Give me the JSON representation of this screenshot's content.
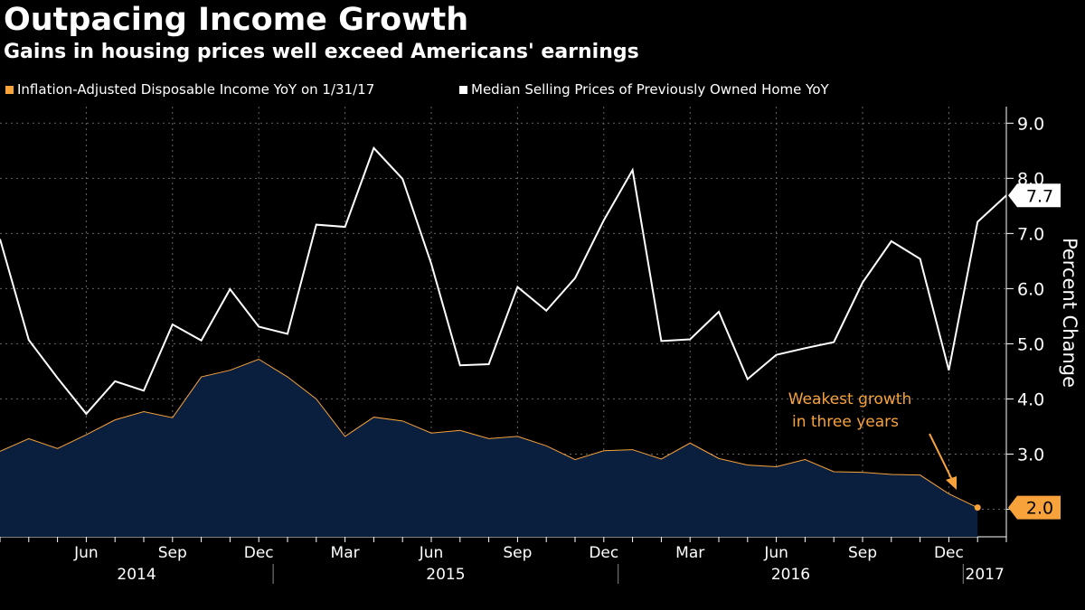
{
  "title": "Outpacing Income Growth",
  "subtitle": "Gains in housing prices well exceed Americans' earnings",
  "colors": {
    "background": "#000000",
    "income": "#f7a23b",
    "income_fill": "#0a1f3d",
    "housing": "#ffffff",
    "grid": "#666666"
  },
  "legend": [
    {
      "label": "Inflation-Adjusted Disposable Income YoY on 1/31/17",
      "color": "#f7a23b"
    },
    {
      "label": "Median Selling Prices of Previously Owned Home YoY",
      "color": "#ffffff"
    }
  ],
  "annotation": {
    "line1": "Weakest growth",
    "line2": "in three years"
  },
  "chart_data": {
    "type": "line",
    "x": [
      "2014-03",
      "2014-04",
      "2014-05",
      "2014-06",
      "2014-07",
      "2014-08",
      "2014-09",
      "2014-10",
      "2014-11",
      "2014-12",
      "2015-01",
      "2015-02",
      "2015-03",
      "2015-04",
      "2015-05",
      "2015-06",
      "2015-07",
      "2015-08",
      "2015-09",
      "2015-10",
      "2015-11",
      "2015-12",
      "2016-01",
      "2016-02",
      "2016-03",
      "2016-04",
      "2016-05",
      "2016-06",
      "2016-07",
      "2016-08",
      "2016-09",
      "2016-10",
      "2016-11",
      "2016-12",
      "2017-01",
      "2017-02"
    ],
    "series": [
      {
        "name": "Inflation-Adjusted Disposable Income YoY on 1/31/17",
        "area": true,
        "values": [
          3.05,
          3.28,
          3.1,
          3.35,
          3.62,
          3.77,
          3.66,
          4.4,
          4.52,
          4.72,
          4.4,
          4.0,
          3.32,
          3.67,
          3.6,
          3.38,
          3.43,
          3.28,
          3.32,
          3.15,
          2.9,
          3.06,
          3.08,
          2.91,
          3.2,
          2.92,
          2.8,
          2.77,
          2.9,
          2.68,
          2.67,
          2.63,
          2.62,
          2.28,
          2.03,
          null
        ],
        "last_value_label": "2.0"
      },
      {
        "name": "Median Selling Prices of Previously Owned Home YoY",
        "values": [
          6.9,
          5.07,
          4.38,
          3.73,
          4.32,
          4.15,
          5.35,
          5.06,
          5.99,
          5.31,
          5.18,
          7.16,
          7.12,
          8.55,
          7.99,
          6.45,
          4.61,
          4.63,
          6.03,
          5.6,
          6.19,
          7.24,
          8.15,
          5.05,
          5.08,
          5.58,
          4.36,
          4.8,
          4.92,
          5.03,
          6.11,
          6.86,
          6.54,
          4.52,
          7.21,
          7.69
        ],
        "last_value_label": "7.7"
      }
    ],
    "ylabel": "Percent Change",
    "ylim": [
      1.5,
      9.3
    ],
    "yticks": [
      "2.0",
      "3.0",
      "4.0",
      "5.0",
      "6.0",
      "7.0",
      "8.0",
      "9.0"
    ],
    "month_ticks": [
      {
        "label": "Jun",
        "index": 3
      },
      {
        "label": "Sep",
        "index": 6
      },
      {
        "label": "Dec",
        "index": 9
      },
      {
        "label": "Mar",
        "index": 12
      },
      {
        "label": "Jun",
        "index": 15
      },
      {
        "label": "Sep",
        "index": 18
      },
      {
        "label": "Dec",
        "index": 21
      },
      {
        "label": "Mar",
        "index": 24
      },
      {
        "label": "Jun",
        "index": 27
      },
      {
        "label": "Sep",
        "index": 30
      },
      {
        "label": "Dec",
        "index": 33
      }
    ],
    "year_labels": [
      {
        "label": "2014",
        "start": 0,
        "end": 9.5
      },
      {
        "label": "2015",
        "start": 9.5,
        "end": 21.5
      },
      {
        "label": "2016",
        "start": 21.5,
        "end": 33.5
      },
      {
        "label": "2017",
        "start": 33.5,
        "end": 35.5
      }
    ],
    "grid": true,
    "legend_position": "top-left"
  }
}
